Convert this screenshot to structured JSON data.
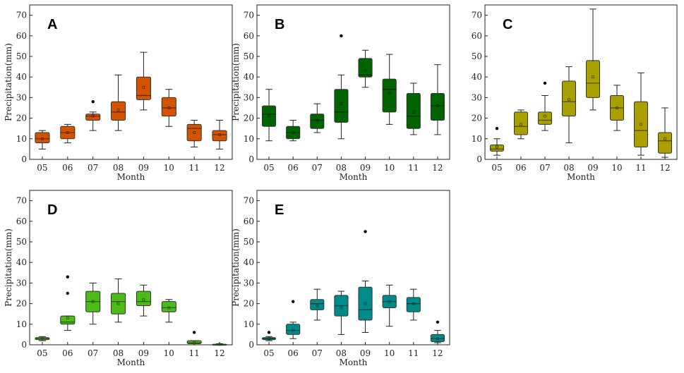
{
  "chart_data": [
    {
      "type": "boxplot",
      "panel": "A",
      "color": "#D35400",
      "xlabel": "Month",
      "ylabel": "Precipitation(mm)",
      "ylim": [
        0,
        75
      ],
      "yticks": [
        0,
        10,
        20,
        30,
        40,
        50,
        60,
        70
      ],
      "categories": [
        "05",
        "06",
        "07",
        "08",
        "09",
        "10",
        "11",
        "12"
      ],
      "boxes": [
        {
          "min": 5,
          "q1": 8,
          "median": 10,
          "q3": 13,
          "max": 14,
          "mean": 10,
          "outliers": []
        },
        {
          "min": 8,
          "q1": 10,
          "median": 13,
          "q3": 16,
          "max": 17,
          "mean": 13,
          "outliers": []
        },
        {
          "min": 14,
          "q1": 19,
          "median": 21,
          "q3": 22,
          "max": 23,
          "mean": 21,
          "outliers": [
            28
          ]
        },
        {
          "min": 14,
          "q1": 19,
          "median": 23,
          "q3": 28,
          "max": 41,
          "mean": 24,
          "outliers": []
        },
        {
          "min": 24,
          "q1": 29,
          "median": 31,
          "q3": 40,
          "max": 52,
          "mean": 35,
          "outliers": []
        },
        {
          "min": 16,
          "q1": 21,
          "median": 25,
          "q3": 30,
          "max": 34,
          "mean": 25,
          "outliers": []
        },
        {
          "min": 6,
          "q1": 9,
          "median": 15,
          "q3": 17,
          "max": 19,
          "mean": 13,
          "outliers": []
        },
        {
          "min": 5,
          "q1": 9,
          "median": 12,
          "q3": 14,
          "max": 19,
          "mean": 12,
          "outliers": []
        }
      ]
    },
    {
      "type": "boxplot",
      "panel": "B",
      "color": "#006400",
      "xlabel": "Month",
      "ylabel": "Precipitation(mm)",
      "ylim": [
        0,
        75
      ],
      "yticks": [
        0,
        10,
        20,
        30,
        40,
        50,
        60,
        70
      ],
      "categories": [
        "05",
        "06",
        "07",
        "08",
        "09",
        "10",
        "11",
        "12"
      ],
      "boxes": [
        {
          "min": 9,
          "q1": 16,
          "median": 22,
          "q3": 26,
          "max": 34,
          "mean": 21,
          "outliers": []
        },
        {
          "min": 9,
          "q1": 10,
          "median": 13,
          "q3": 16,
          "max": 19,
          "mean": 13,
          "outliers": []
        },
        {
          "min": 13,
          "q1": 15,
          "median": 19,
          "q3": 22,
          "max": 27,
          "mean": 19,
          "outliers": []
        },
        {
          "min": 10,
          "q1": 18,
          "median": 23,
          "q3": 34,
          "max": 41,
          "mean": 27,
          "outliers": [
            60
          ]
        },
        {
          "min": 35,
          "q1": 40,
          "median": 41,
          "q3": 49,
          "max": 53,
          "mean": 43,
          "outliers": []
        },
        {
          "min": 17,
          "q1": 23,
          "median": 34,
          "q3": 39,
          "max": 51,
          "mean": 32,
          "outliers": []
        },
        {
          "min": 12,
          "q1": 15,
          "median": 21,
          "q3": 32,
          "max": 37,
          "mean": 23,
          "outliers": []
        },
        {
          "min": 12,
          "q1": 19,
          "median": 26,
          "q3": 32,
          "max": 46,
          "mean": 26,
          "outliers": []
        }
      ]
    },
    {
      "type": "boxplot",
      "panel": "C",
      "color": "#A9A000",
      "xlabel": "Month",
      "ylabel": "",
      "ylim": [
        0,
        75
      ],
      "yticks": [
        0,
        10,
        20,
        30,
        40,
        50,
        60,
        70
      ],
      "categories": [
        "05",
        "06",
        "07",
        "08",
        "09",
        "10",
        "11",
        "12"
      ],
      "boxes": [
        {
          "min": 2,
          "q1": 4,
          "median": 5,
          "q3": 7,
          "max": 10,
          "mean": 6,
          "outliers": [
            15
          ]
        },
        {
          "min": 10,
          "q1": 12,
          "median": 16,
          "q3": 23,
          "max": 24,
          "mean": 17,
          "outliers": []
        },
        {
          "min": 14,
          "q1": 17,
          "median": 19,
          "q3": 23,
          "max": 31,
          "mean": 21,
          "outliers": [
            37
          ]
        },
        {
          "min": 8,
          "q1": 21,
          "median": 28,
          "q3": 38,
          "max": 45,
          "mean": 29,
          "outliers": []
        },
        {
          "min": 24,
          "q1": 30,
          "median": 37,
          "q3": 48,
          "max": 73,
          "mean": 40,
          "outliers": []
        },
        {
          "min": 14,
          "q1": 19,
          "median": 25,
          "q3": 31,
          "max": 36,
          "mean": 25,
          "outliers": []
        },
        {
          "min": 2,
          "q1": 6,
          "median": 14,
          "q3": 28,
          "max": 42,
          "mean": 17,
          "outliers": []
        },
        {
          "min": 1,
          "q1": 3,
          "median": 9,
          "q3": 13,
          "max": 25,
          "mean": 10,
          "outliers": []
        }
      ]
    },
    {
      "type": "boxplot",
      "panel": "D",
      "color": "#4CBB17",
      "xlabel": "Month",
      "ylabel": "Precipitation(mm)",
      "ylim": [
        0,
        75
      ],
      "yticks": [
        0,
        10,
        20,
        30,
        40,
        50,
        60,
        70
      ],
      "categories": [
        "05",
        "06",
        "07",
        "08",
        "09",
        "10",
        "11",
        "12"
      ],
      "boxes": [
        {
          "min": 2,
          "q1": 2.5,
          "median": 3,
          "q3": 3.5,
          "max": 4,
          "mean": 3,
          "outliers": []
        },
        {
          "min": 7,
          "q1": 10,
          "median": 11,
          "q3": 14,
          "max": 14,
          "mean": 13,
          "outliers": [
            25,
            33
          ]
        },
        {
          "min": 10,
          "q1": 16,
          "median": 21,
          "q3": 26,
          "max": 30,
          "mean": 21,
          "outliers": []
        },
        {
          "min": 11,
          "q1": 15,
          "median": 21,
          "q3": 25,
          "max": 32,
          "mean": 20,
          "outliers": []
        },
        {
          "min": 14,
          "q1": 19,
          "median": 21,
          "q3": 26,
          "max": 29,
          "mean": 22,
          "outliers": []
        },
        {
          "min": 11,
          "q1": 16,
          "median": 18,
          "q3": 21,
          "max": 22,
          "mean": 18,
          "outliers": []
        },
        {
          "min": 0,
          "q1": 0.5,
          "median": 1,
          "q3": 2,
          "max": 2,
          "mean": 1,
          "outliers": [
            6
          ]
        },
        {
          "min": 0,
          "q1": 0,
          "median": 0,
          "q3": 0.3,
          "max": 0.5,
          "mean": 0.2,
          "outliers": []
        }
      ]
    },
    {
      "type": "boxplot",
      "panel": "E",
      "color": "#008B8B",
      "xlabel": "Month",
      "ylabel": "Precipitation(mm)",
      "ylim": [
        0,
        75
      ],
      "yticks": [
        0,
        10,
        20,
        30,
        40,
        50,
        60,
        70
      ],
      "categories": [
        "05",
        "06",
        "07",
        "08",
        "09",
        "10",
        "11",
        "12"
      ],
      "boxes": [
        {
          "min": 2,
          "q1": 2.5,
          "median": 3,
          "q3": 3.5,
          "max": 4,
          "mean": 3,
          "outliers": [
            6
          ]
        },
        {
          "min": 3,
          "q1": 5,
          "median": 7,
          "q3": 10,
          "max": 11,
          "mean": 7,
          "outliers": [
            21
          ]
        },
        {
          "min": 12,
          "q1": 17,
          "median": 20,
          "q3": 22,
          "max": 27,
          "mean": 19,
          "outliers": []
        },
        {
          "min": 5,
          "q1": 14,
          "median": 19,
          "q3": 24,
          "max": 26,
          "mean": 18,
          "outliers": []
        },
        {
          "min": 6,
          "q1": 12,
          "median": 17,
          "q3": 28,
          "max": 31,
          "mean": 20,
          "outliers": [
            55
          ]
        },
        {
          "min": 9,
          "q1": 18,
          "median": 21,
          "q3": 24,
          "max": 29,
          "mean": 21,
          "outliers": []
        },
        {
          "min": 12,
          "q1": 16,
          "median": 20,
          "q3": 23,
          "max": 27,
          "mean": 20,
          "outliers": []
        },
        {
          "min": 1,
          "q1": 1.5,
          "median": 3,
          "q3": 5,
          "max": 7,
          "mean": 3,
          "outliers": [
            11
          ]
        }
      ]
    }
  ]
}
